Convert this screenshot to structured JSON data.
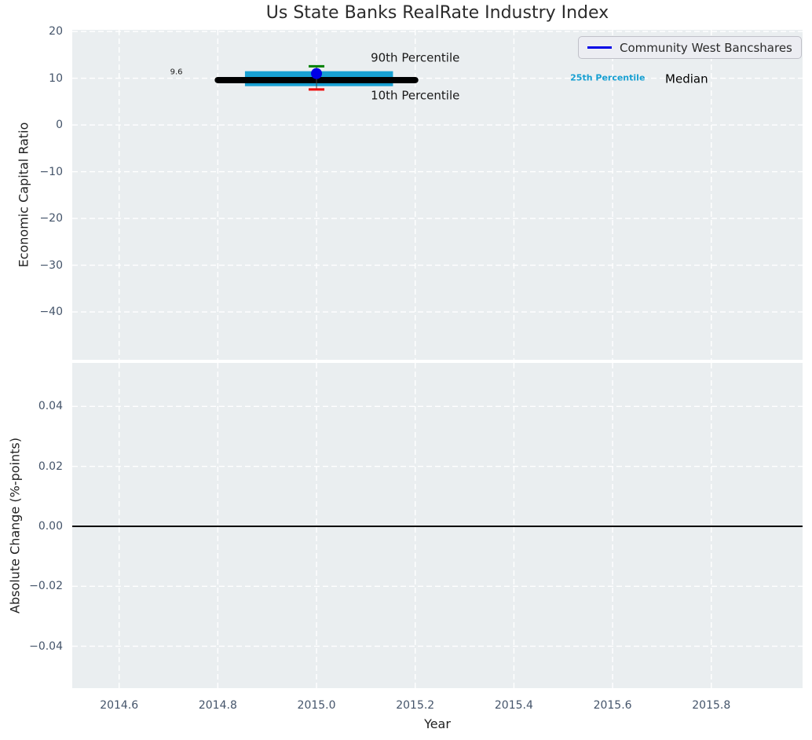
{
  "colors": {
    "figure_bg": "#ffffff",
    "axes_bg": "#eaeef0",
    "grid": "#ffffff",
    "tick_label": "#44546a",
    "axis_label": "#1f1f1f",
    "title": "#2b2b2b",
    "median_line": "#000000",
    "percentile_band": "#18a0d2",
    "p90_cap": "#008000",
    "p10_cap": "#ee0000",
    "company_marker": "#0000e6",
    "whisker": "#444444",
    "zero_line": "#000000",
    "legend_bg": "#ecedf2",
    "legend_border": "#c0c0c8"
  },
  "chart_data": [
    {
      "type": "bar",
      "subtype": "percentile-box-timeline",
      "title": "Us State Banks RealRate Industry Index",
      "ylabel": "Economic Capital Ratio",
      "xlim": [
        2014.505,
        2015.985
      ],
      "ylim": [
        -50.25,
        20.35
      ],
      "grid": "white dashed, on",
      "legend_position": "upper right",
      "legend": {
        "label": "Community West Bancshares"
      },
      "xticks": [
        2014.6,
        2014.8,
        2015.0,
        2015.2,
        2015.4,
        2015.6,
        2015.8
      ],
      "show_xtick_labels": false,
      "yticks": [
        {
          "v": 20,
          "label": "20"
        },
        {
          "v": 10,
          "label": "10"
        },
        {
          "v": 0,
          "label": "0"
        },
        {
          "v": -10,
          "label": "−10"
        },
        {
          "v": -20,
          "label": "−20"
        },
        {
          "v": -30,
          "label": "−30"
        },
        {
          "v": -40,
          "label": "−40"
        }
      ],
      "box": {
        "year": 2015.0,
        "median": 9.6,
        "median_label": "9.6",
        "median_span": [
          2014.8,
          2015.2
        ],
        "band_span": [
          2014.855,
          2015.155
        ],
        "p25": 8.3,
        "p75": 11.5,
        "p10": 7.6,
        "p90": 12.55,
        "company_value": 11.0
      },
      "annotations": [
        {
          "name": "annotation-90th-percentile",
          "text": "90th Percentile",
          "x": 2015.2,
          "y": 14.3,
          "color": "#1a1a1a",
          "size": 15,
          "weight": "normal"
        },
        {
          "name": "annotation-10th-percentile",
          "text": "10th Percentile",
          "x": 2015.2,
          "y": 6.3,
          "color": "#1a1a1a",
          "size": 15,
          "weight": "normal"
        },
        {
          "name": "annotation-25th-percentile",
          "text": "25th Percentile",
          "x": 2015.59,
          "y": 9.9,
          "color": "#18a0d2",
          "size": 11,
          "weight": "bold"
        },
        {
          "name": "annotation-median",
          "text": "Median",
          "x": 2015.75,
          "y": 9.8,
          "color": "#000000",
          "size": 15,
          "weight": "normal"
        },
        {
          "name": "annotation-median-value",
          "text": "9.6",
          "x": 2014.716,
          "y": 11.3,
          "color": "#1a1a1a",
          "size": 10,
          "weight": "normal"
        }
      ]
    },
    {
      "type": "line",
      "ylabel": "Absolute Change (%-points)",
      "xlabel": "Year",
      "xlim": [
        2014.505,
        2015.985
      ],
      "ylim": [
        -0.054,
        0.0545
      ],
      "grid": "white dashed, on",
      "xticks": [
        {
          "v": 2014.6,
          "label": "2014.6"
        },
        {
          "v": 2014.8,
          "label": "2014.8"
        },
        {
          "v": 2015.0,
          "label": "2015.0"
        },
        {
          "v": 2015.2,
          "label": "2015.2"
        },
        {
          "v": 2015.4,
          "label": "2015.4"
        },
        {
          "v": 2015.6,
          "label": "2015.6"
        },
        {
          "v": 2015.8,
          "label": "2015.8"
        }
      ],
      "show_xtick_labels": true,
      "yticks": [
        {
          "v": 0.04,
          "label": "0.04"
        },
        {
          "v": 0.02,
          "label": "0.02"
        },
        {
          "v": 0.0,
          "label": "0.00"
        },
        {
          "v": -0.02,
          "label": "−0.02"
        },
        {
          "v": -0.04,
          "label": "−0.04"
        }
      ],
      "zero_line": {
        "y": 0.0
      },
      "series": []
    }
  ]
}
